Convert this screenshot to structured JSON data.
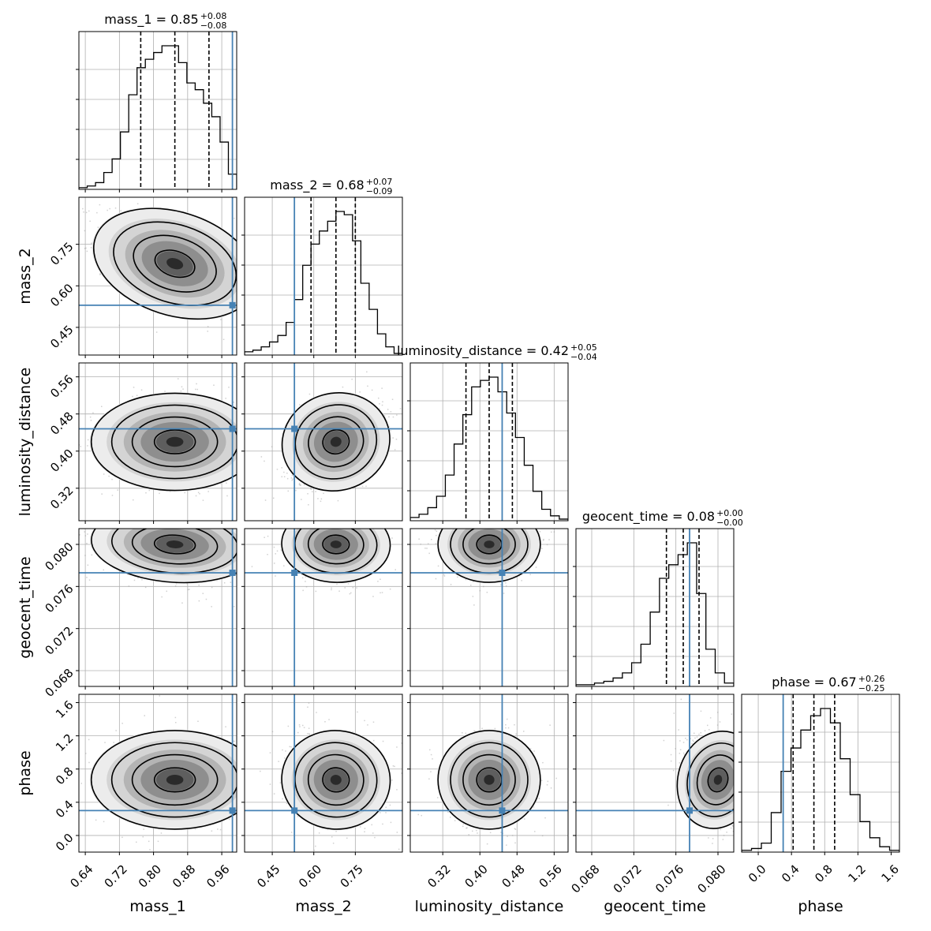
{
  "chart_data": {
    "type": "corner",
    "parameters": [
      {
        "name": "mass_1",
        "label": "mass_1",
        "median": 0.85,
        "plus": 0.08,
        "minus": 0.08,
        "title_value": "0.85",
        "title_plus": "+0.08",
        "title_minus": "−0.08",
        "range": [
          0.625,
          0.995
        ],
        "ticks": [
          0.64,
          0.72,
          0.8,
          0.88,
          0.96
        ],
        "tick_labels": [
          "0.64",
          "0.72",
          "0.80",
          "0.88",
          "0.96"
        ],
        "truth": 0.985,
        "quantiles": [
          0.77,
          0.85,
          0.93
        ]
      },
      {
        "name": "mass_2",
        "label": "mass_2",
        "median": 0.68,
        "plus": 0.07,
        "minus": 0.09,
        "title_value": "0.68",
        "title_plus": "+0.07",
        "title_minus": "−0.09",
        "range": [
          0.35,
          0.92
        ],
        "ticks": [
          0.45,
          0.6,
          0.75
        ],
        "tick_labels": [
          "0.45",
          "0.60",
          "0.75"
        ],
        "truth": 0.53,
        "quantiles": [
          0.59,
          0.68,
          0.75
        ]
      },
      {
        "name": "luminosity_distance",
        "label": "luminosity_distance",
        "median": 0.42,
        "plus": 0.05,
        "minus": 0.04,
        "title_value": "0.42",
        "title_plus": "+0.05",
        "title_minus": "−0.04",
        "range": [
          0.25,
          0.59
        ],
        "ticks": [
          0.32,
          0.4,
          0.48,
          0.56
        ],
        "tick_labels": [
          "0.32",
          "0.40",
          "0.48",
          "0.56"
        ],
        "truth": 0.448,
        "quantiles": [
          0.37,
          0.42,
          0.47
        ]
      },
      {
        "name": "geocent_time",
        "label": "geocent_time",
        "median": 0.08,
        "plus": 0.0,
        "minus": 0.0,
        "title_value": "0.08",
        "title_plus": "+0.00",
        "title_minus": "−0.00",
        "range": [
          0.0665,
          0.0815
        ],
        "ticks": [
          0.068,
          0.072,
          0.076,
          0.08
        ],
        "tick_labels": [
          "0.068",
          "0.072",
          "0.076",
          "0.080"
        ],
        "truth": 0.0773,
        "quantiles": [
          0.0751,
          0.0767,
          0.0782
        ]
      },
      {
        "name": "phase",
        "label": "phase",
        "median": 0.67,
        "plus": 0.26,
        "minus": 0.25,
        "title_value": "0.67",
        "title_plus": "+0.26",
        "title_minus": "−0.25",
        "range": [
          -0.2,
          1.7
        ],
        "ticks": [
          0.0,
          0.4,
          0.8,
          1.2,
          1.6
        ],
        "tick_labels": [
          "0.0",
          "0.4",
          "0.8",
          "1.2",
          "1.6"
        ],
        "truth": 0.3,
        "quantiles": [
          0.42,
          0.67,
          0.92
        ]
      }
    ],
    "histograms": {
      "mass_1": [
        1,
        2,
        4,
        10,
        18,
        34,
        56,
        72,
        77,
        81,
        85,
        85,
        75,
        63,
        59,
        51,
        43,
        28,
        9
      ],
      "mass_2": [
        2,
        3,
        5,
        8,
        12,
        20,
        34,
        55,
        68,
        76,
        82,
        88,
        86,
        70,
        44,
        28,
        13,
        5,
        1
      ],
      "luminosity_distance": [
        2,
        4,
        8,
        15,
        28,
        47,
        65,
        82,
        86,
        88,
        79,
        66,
        51,
        34,
        18,
        7,
        3,
        1
      ],
      "geocent_time": [
        1,
        1,
        2,
        3,
        5,
        8,
        14,
        25,
        44,
        64,
        72,
        78,
        85,
        55,
        22,
        8,
        2
      ],
      "phase": [
        1,
        2,
        5,
        22,
        45,
        58,
        68,
        76,
        80,
        72,
        52,
        32,
        17,
        8,
        3,
        1
      ]
    },
    "correlations": {
      "mass_2|mass_1": -0.55,
      "luminosity_distance|mass_1": 0.0,
      "luminosity_distance|mass_2": 0.35,
      "geocent_time|mass_1": -0.15,
      "geocent_time|mass_2": -0.05,
      "geocent_time|luminosity_distance": 0.0,
      "phase|mass_1": 0.0,
      "phase|mass_2": -0.1,
      "phase|luminosity_distance": 0.0,
      "phase|geocent_time": -0.25
    },
    "truth_color": "#4682b4",
    "quantile_style": "dashed",
    "grid": true
  }
}
